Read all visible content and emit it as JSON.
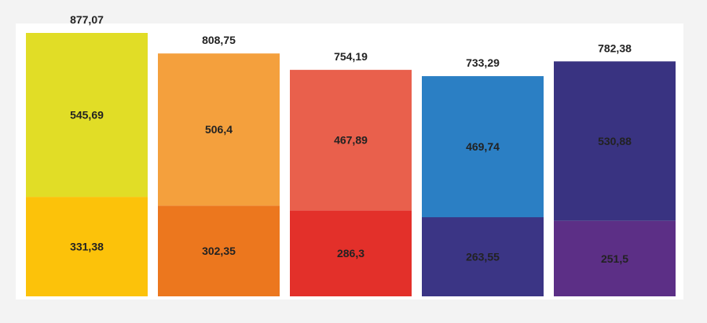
{
  "chart_data": {
    "type": "bar",
    "stacked": true,
    "categories": [
      "",
      "",
      "",
      "",
      ""
    ],
    "series": [
      {
        "values": [
          331.38,
          302.35,
          286.3,
          263.55,
          251.5
        ],
        "value_labels": [
          "331,38",
          "302,35",
          "286,3",
          "263,55",
          "251,5"
        ],
        "colors": [
          "#fcc20a",
          "#ec771e",
          "#e3302a",
          "#3b3585",
          "#5c2f86"
        ]
      },
      {
        "values": [
          545.69,
          506.4,
          467.89,
          469.74,
          530.88
        ],
        "value_labels": [
          "545,69",
          "506,4",
          "467,89",
          "469,74",
          "530,88"
        ],
        "colors": [
          "#e1dd26",
          "#f4a03d",
          "#e9604c",
          "#2b7fc4",
          "#393381"
        ]
      }
    ],
    "totals": [
      877.07,
      808.75,
      754.19,
      733.29,
      782.38
    ],
    "total_labels": [
      "877,07",
      "808,75",
      "754,19",
      "733,29",
      "782,38"
    ],
    "ylim": [
      0,
      877.07
    ],
    "grid": false,
    "legend": "none"
  }
}
